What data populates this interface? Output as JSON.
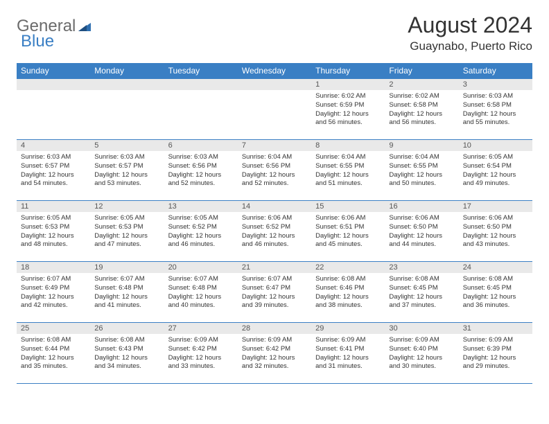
{
  "logo": {
    "text1": "General",
    "text2": "Blue"
  },
  "title": "August 2024",
  "location": "Guaynabo, Puerto Rico",
  "colors": {
    "brand_blue": "#3a7fc4",
    "header_text": "#ffffff",
    "daynum_bg": "#e9e9e9",
    "text_gray": "#6b6b6b",
    "body_text": "#333333",
    "border": "#3a7fc4"
  },
  "day_headers": [
    "Sunday",
    "Monday",
    "Tuesday",
    "Wednesday",
    "Thursday",
    "Friday",
    "Saturday"
  ],
  "weeks": [
    [
      {
        "n": "",
        "sr": "",
        "ss": "",
        "dl": ""
      },
      {
        "n": "",
        "sr": "",
        "ss": "",
        "dl": ""
      },
      {
        "n": "",
        "sr": "",
        "ss": "",
        "dl": ""
      },
      {
        "n": "",
        "sr": "",
        "ss": "",
        "dl": ""
      },
      {
        "n": "1",
        "sr": "Sunrise: 6:02 AM",
        "ss": "Sunset: 6:59 PM",
        "dl": "Daylight: 12 hours and 56 minutes."
      },
      {
        "n": "2",
        "sr": "Sunrise: 6:02 AM",
        "ss": "Sunset: 6:58 PM",
        "dl": "Daylight: 12 hours and 56 minutes."
      },
      {
        "n": "3",
        "sr": "Sunrise: 6:03 AM",
        "ss": "Sunset: 6:58 PM",
        "dl": "Daylight: 12 hours and 55 minutes."
      }
    ],
    [
      {
        "n": "4",
        "sr": "Sunrise: 6:03 AM",
        "ss": "Sunset: 6:57 PM",
        "dl": "Daylight: 12 hours and 54 minutes."
      },
      {
        "n": "5",
        "sr": "Sunrise: 6:03 AM",
        "ss": "Sunset: 6:57 PM",
        "dl": "Daylight: 12 hours and 53 minutes."
      },
      {
        "n": "6",
        "sr": "Sunrise: 6:03 AM",
        "ss": "Sunset: 6:56 PM",
        "dl": "Daylight: 12 hours and 52 minutes."
      },
      {
        "n": "7",
        "sr": "Sunrise: 6:04 AM",
        "ss": "Sunset: 6:56 PM",
        "dl": "Daylight: 12 hours and 52 minutes."
      },
      {
        "n": "8",
        "sr": "Sunrise: 6:04 AM",
        "ss": "Sunset: 6:55 PM",
        "dl": "Daylight: 12 hours and 51 minutes."
      },
      {
        "n": "9",
        "sr": "Sunrise: 6:04 AM",
        "ss": "Sunset: 6:55 PM",
        "dl": "Daylight: 12 hours and 50 minutes."
      },
      {
        "n": "10",
        "sr": "Sunrise: 6:05 AM",
        "ss": "Sunset: 6:54 PM",
        "dl": "Daylight: 12 hours and 49 minutes."
      }
    ],
    [
      {
        "n": "11",
        "sr": "Sunrise: 6:05 AM",
        "ss": "Sunset: 6:53 PM",
        "dl": "Daylight: 12 hours and 48 minutes."
      },
      {
        "n": "12",
        "sr": "Sunrise: 6:05 AM",
        "ss": "Sunset: 6:53 PM",
        "dl": "Daylight: 12 hours and 47 minutes."
      },
      {
        "n": "13",
        "sr": "Sunrise: 6:05 AM",
        "ss": "Sunset: 6:52 PM",
        "dl": "Daylight: 12 hours and 46 minutes."
      },
      {
        "n": "14",
        "sr": "Sunrise: 6:06 AM",
        "ss": "Sunset: 6:52 PM",
        "dl": "Daylight: 12 hours and 46 minutes."
      },
      {
        "n": "15",
        "sr": "Sunrise: 6:06 AM",
        "ss": "Sunset: 6:51 PM",
        "dl": "Daylight: 12 hours and 45 minutes."
      },
      {
        "n": "16",
        "sr": "Sunrise: 6:06 AM",
        "ss": "Sunset: 6:50 PM",
        "dl": "Daylight: 12 hours and 44 minutes."
      },
      {
        "n": "17",
        "sr": "Sunrise: 6:06 AM",
        "ss": "Sunset: 6:50 PM",
        "dl": "Daylight: 12 hours and 43 minutes."
      }
    ],
    [
      {
        "n": "18",
        "sr": "Sunrise: 6:07 AM",
        "ss": "Sunset: 6:49 PM",
        "dl": "Daylight: 12 hours and 42 minutes."
      },
      {
        "n": "19",
        "sr": "Sunrise: 6:07 AM",
        "ss": "Sunset: 6:48 PM",
        "dl": "Daylight: 12 hours and 41 minutes."
      },
      {
        "n": "20",
        "sr": "Sunrise: 6:07 AM",
        "ss": "Sunset: 6:48 PM",
        "dl": "Daylight: 12 hours and 40 minutes."
      },
      {
        "n": "21",
        "sr": "Sunrise: 6:07 AM",
        "ss": "Sunset: 6:47 PM",
        "dl": "Daylight: 12 hours and 39 minutes."
      },
      {
        "n": "22",
        "sr": "Sunrise: 6:08 AM",
        "ss": "Sunset: 6:46 PM",
        "dl": "Daylight: 12 hours and 38 minutes."
      },
      {
        "n": "23",
        "sr": "Sunrise: 6:08 AM",
        "ss": "Sunset: 6:45 PM",
        "dl": "Daylight: 12 hours and 37 minutes."
      },
      {
        "n": "24",
        "sr": "Sunrise: 6:08 AM",
        "ss": "Sunset: 6:45 PM",
        "dl": "Daylight: 12 hours and 36 minutes."
      }
    ],
    [
      {
        "n": "25",
        "sr": "Sunrise: 6:08 AM",
        "ss": "Sunset: 6:44 PM",
        "dl": "Daylight: 12 hours and 35 minutes."
      },
      {
        "n": "26",
        "sr": "Sunrise: 6:08 AM",
        "ss": "Sunset: 6:43 PM",
        "dl": "Daylight: 12 hours and 34 minutes."
      },
      {
        "n": "27",
        "sr": "Sunrise: 6:09 AM",
        "ss": "Sunset: 6:42 PM",
        "dl": "Daylight: 12 hours and 33 minutes."
      },
      {
        "n": "28",
        "sr": "Sunrise: 6:09 AM",
        "ss": "Sunset: 6:42 PM",
        "dl": "Daylight: 12 hours and 32 minutes."
      },
      {
        "n": "29",
        "sr": "Sunrise: 6:09 AM",
        "ss": "Sunset: 6:41 PM",
        "dl": "Daylight: 12 hours and 31 minutes."
      },
      {
        "n": "30",
        "sr": "Sunrise: 6:09 AM",
        "ss": "Sunset: 6:40 PM",
        "dl": "Daylight: 12 hours and 30 minutes."
      },
      {
        "n": "31",
        "sr": "Sunrise: 6:09 AM",
        "ss": "Sunset: 6:39 PM",
        "dl": "Daylight: 12 hours and 29 minutes."
      }
    ]
  ]
}
